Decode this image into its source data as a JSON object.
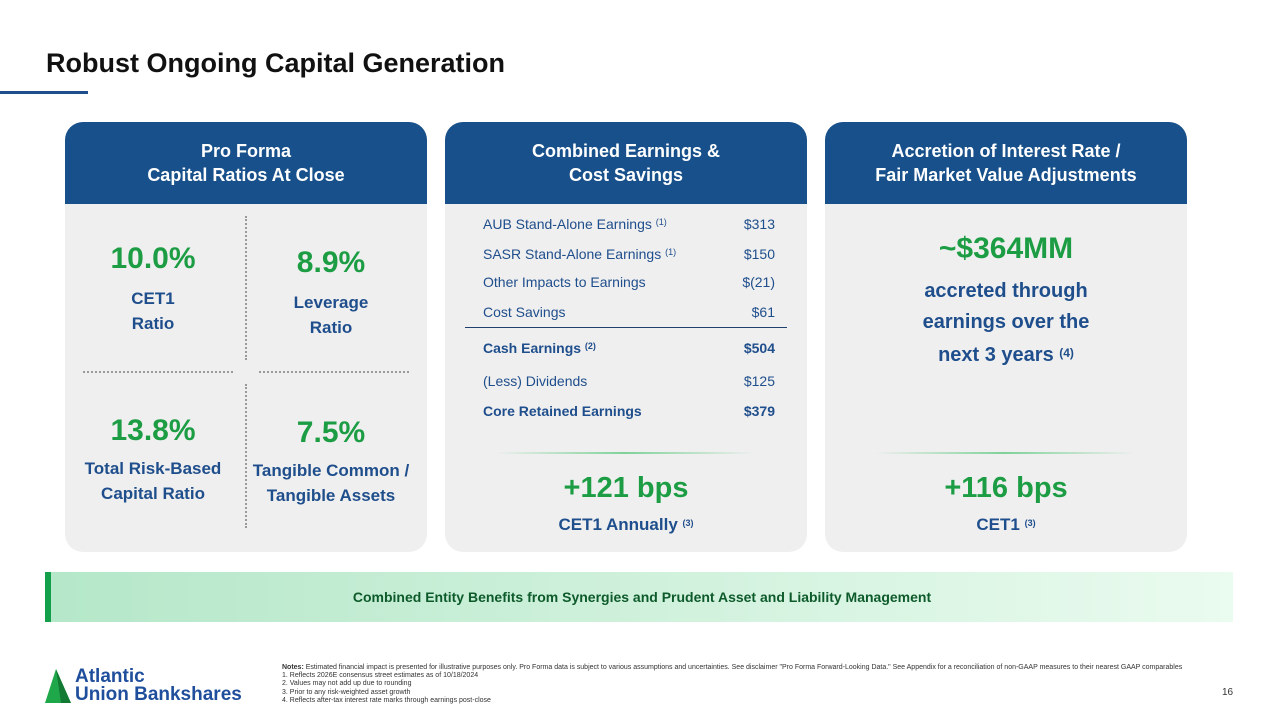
{
  "title": "Robust Ongoing Capital Generation",
  "panels": [
    {
      "header_line1": "Pro Forma",
      "header_line2": "Capital Ratios At Close",
      "metrics": [
        {
          "value": "10.0%",
          "label_line1": "CET1",
          "label_line2": "Ratio"
        },
        {
          "value": "8.9%",
          "label_line1": "Leverage",
          "label_line2": "Ratio"
        },
        {
          "value": "13.8%",
          "label_line1": "Total Risk-Based",
          "label_line2": "Capital Ratio"
        },
        {
          "value": "7.5%",
          "label_line1": "Tangible Common /",
          "label_line2": "Tangible Assets"
        }
      ]
    },
    {
      "header_line1": "Combined Earnings &",
      "header_line2": "Cost Savings",
      "rows": [
        {
          "label": "AUB Stand-Alone Earnings",
          "note": "(1)",
          "value": "$313"
        },
        {
          "label": "SASR Stand-Alone Earnings",
          "note": "(1)",
          "value": "$150"
        },
        {
          "label": "Other Impacts to Earnings",
          "note": "",
          "value": "$(21)"
        },
        {
          "label": "Cost Savings",
          "note": "",
          "value": "$61"
        },
        {
          "label": "Cash Earnings",
          "note": "(2)",
          "value": "$504"
        },
        {
          "label": "(Less) Dividends",
          "note": "",
          "value": "$125"
        },
        {
          "label": "Core Retained Earnings",
          "note": "",
          "value": "$379"
        }
      ],
      "result": "+121 bps",
      "result_label": "CET1 Annually",
      "result_note": "(3)"
    },
    {
      "header_line1": "Accretion of Interest Rate /",
      "header_line2": "Fair Market Value Adjustments",
      "amount": "~$364MM",
      "desc_line1": "accreted through",
      "desc_line2": "earnings over the",
      "desc_line3": "next 3 years",
      "desc_note": "(4)",
      "result": "+116 bps",
      "result_label": "CET1",
      "result_note": "(3)"
    }
  ],
  "banner": "Combined Entity Benefits from Synergies and Prudent Asset and Liability Management",
  "notes": {
    "prefix": "Notes:",
    "text": "Estimated financial impact is presented for illustrative purposes only. Pro Forma data is subject to various assumptions and uncertainties. See disclaimer \"Pro Forma Forward-Looking Data.\" See Appendix for a reconciliation of non-GAAP measures to their nearest GAAP comparables",
    "items": [
      "1. Reflects 2026E consensus street estimates as of 10/18/2024",
      "2. Values may not add up due to rounding",
      "3. Prior to any risk-weighted asset growth",
      "4. Reflects after-tax interest rate marks through earnings post-close"
    ]
  },
  "logo": {
    "line1": "Atlantic",
    "line2": "Union Bankshares"
  },
  "page_number": "16"
}
